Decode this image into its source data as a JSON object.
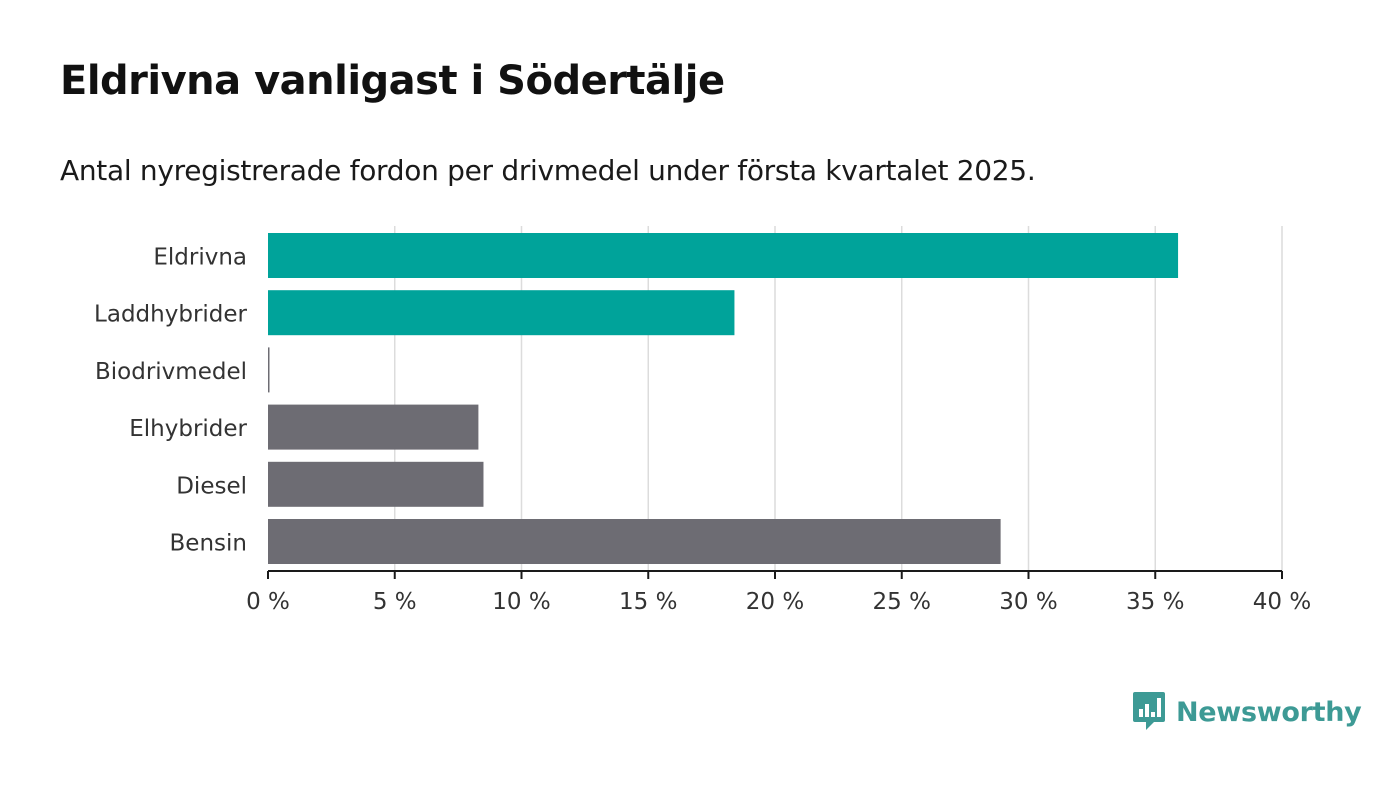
{
  "title": "Eldrivna vanligast i Södertälje",
  "subtitle": "Antal nyregistrerade fordon per drivmedel under första kvartalet 2025.",
  "logo": {
    "text": "Newsworthy",
    "icon": "newsworthy-chart-bubble-icon",
    "color": "#3d9a95"
  },
  "chart_data": {
    "type": "bar",
    "orientation": "horizontal",
    "categories": [
      "Eldrivna",
      "Laddhybrider",
      "Biodrivmedel",
      "Elhybrider",
      "Diesel",
      "Bensin"
    ],
    "values": [
      35.9,
      18.4,
      0.05,
      8.3,
      8.5,
      28.9
    ],
    "colors": [
      "#00a39a",
      "#00a39a",
      "#6d6c73",
      "#6d6c73",
      "#6d6c73",
      "#6d6c73"
    ],
    "xlim": [
      0,
      40
    ],
    "xticks": [
      0,
      5,
      10,
      15,
      20,
      25,
      30,
      35,
      40
    ],
    "tick_labels": [
      "0 %",
      "5 %",
      "10 %",
      "15 %",
      "20 %",
      "25 %",
      "30 %",
      "35 %",
      "40 %"
    ],
    "unit": "%",
    "grid": true,
    "legend": "none"
  }
}
